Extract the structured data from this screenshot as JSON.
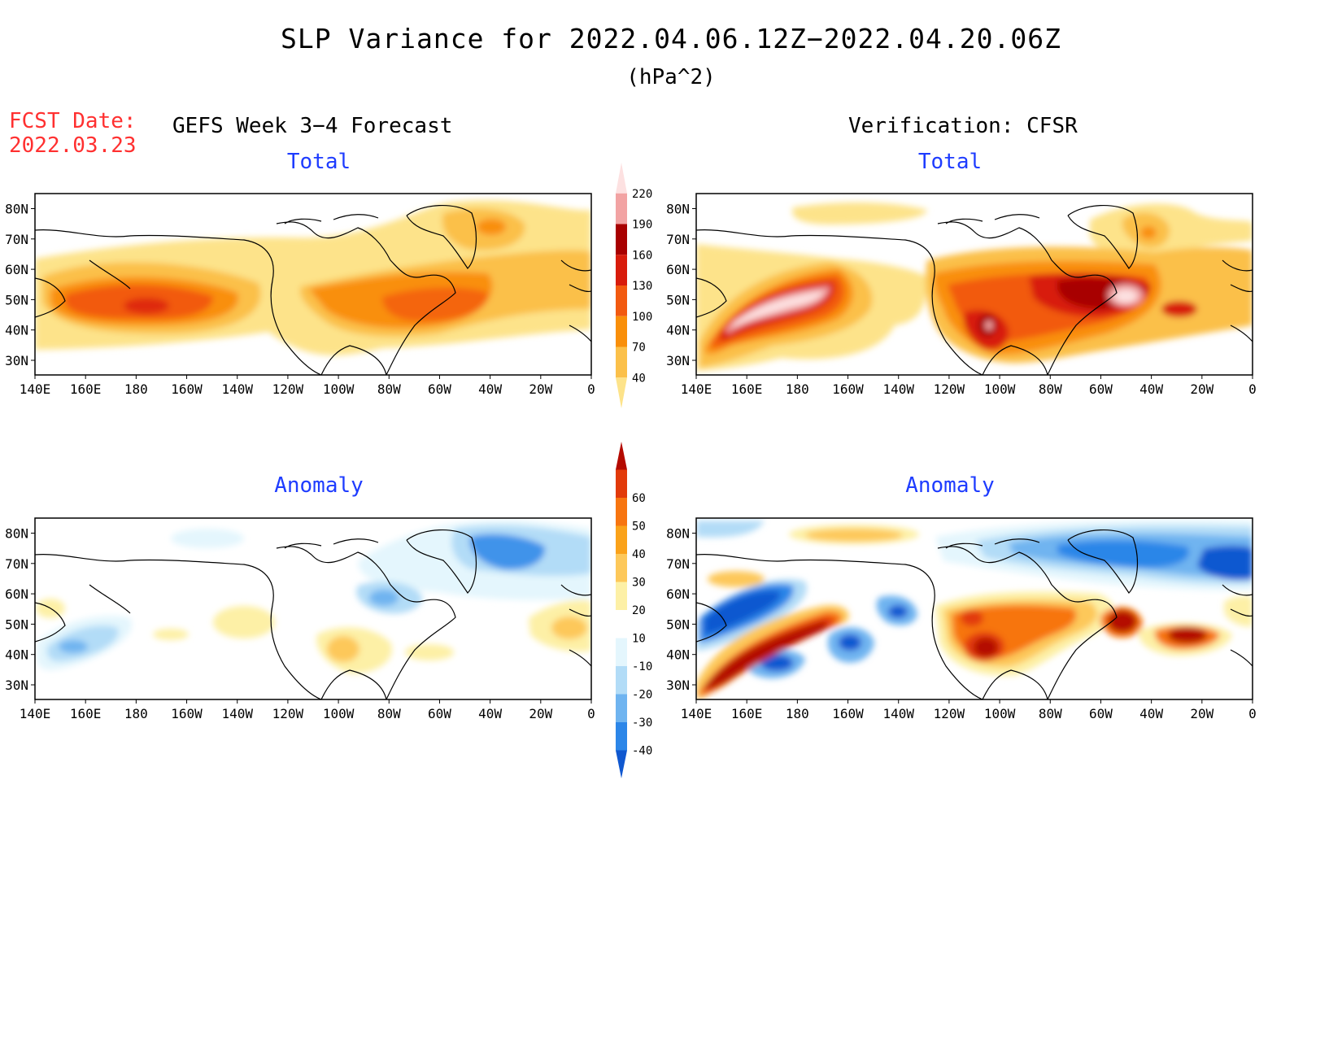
{
  "header": {
    "title": "SLP Variance for 2022.04.06.12Z−2022.04.20.06Z",
    "units": "(hPa^2)",
    "fcst_label": "FCST Date:",
    "fcst_date": "2022.03.23",
    "left_column": "GEFS Week 3−4 Forecast",
    "right_column": "Verification: CFSR"
  },
  "panels": {
    "total_label": "Total",
    "anomaly_label": "Anomaly"
  },
  "axes": {
    "lon_labels": [
      "140E",
      "160E",
      "180",
      "160W",
      "140W",
      "120W",
      "100W",
      "80W",
      "60W",
      "40W",
      "20W",
      "0"
    ],
    "lat_labels": [
      "80N",
      "70N",
      "60N",
      "50N",
      "40N",
      "30N"
    ]
  },
  "colorbars": {
    "total": {
      "levels": [
        "40",
        "70",
        "100",
        "130",
        "160",
        "190",
        "220"
      ],
      "colors": [
        "#fde38a",
        "#fbc04a",
        "#f98f0a",
        "#f25a10",
        "#d81c0c",
        "#a80000",
        "#f2a3a3",
        "#fde1e1"
      ]
    },
    "anomaly": {
      "levels": [
        "-40",
        "-30",
        "-20",
        "-10",
        "10",
        "20",
        "30",
        "40",
        "50",
        "60"
      ],
      "colors": [
        "#1058d0",
        "#2c86e8",
        "#6fb4f0",
        "#b2dcf7",
        "#e4f6fd",
        "#ffffff",
        "#fdf0a6",
        "#fdc85a",
        "#faa21a",
        "#f77510",
        "#e23a0a",
        "#b40a00"
      ]
    }
  }
}
